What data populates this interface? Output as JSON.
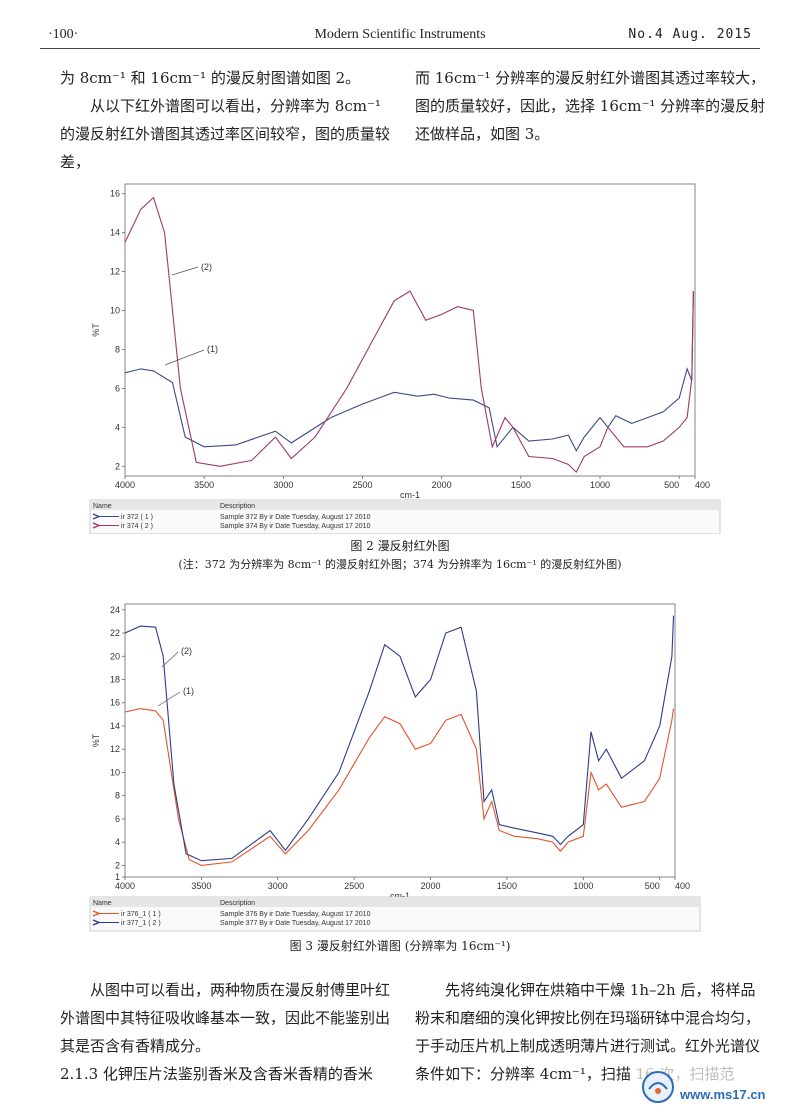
{
  "header": {
    "page_number": "·100·",
    "journal": "Modern Scientific Instruments",
    "issue": "No.4  Aug. 2015"
  },
  "top_text": {
    "left": [
      "为 8cm⁻¹ 和 16cm⁻¹ 的漫反射图谱如图 2。",
      "从以下红外谱图可以看出，分辨率为 8cm⁻¹ 的漫反射红外谱图其透过率区间较窄，图的质量较差，"
    ],
    "right": [
      "而 16cm⁻¹ 分辨率的漫反射红外谱图其透过率较大，图的质量较好，因此，选择 16cm⁻¹ 分辨率的漫反射还做样品，如图 3。"
    ]
  },
  "figure2": {
    "caption": "图 2   漫反射红外图",
    "note": "(注：372 为分辨率为 8cm⁻¹ 的漫反射红外图；374 为分辨率为 16cm⁻¹ 的漫反射红外图)",
    "legend_headers": [
      "Name",
      "Description"
    ],
    "legend_rows": [
      {
        "name": "ir 372  ( 1 )",
        "desc": "Sample 372 By ir Date Tuesday, August 17 2010",
        "color": "#3a4a8c"
      },
      {
        "name": "ir 374  ( 2 )",
        "desc": "Sample 374 By ir Date Tuesday, August 17 2010",
        "color": "#a0386a"
      }
    ]
  },
  "figure3": {
    "caption": "图 3   漫反射红外谱图 (分辨率为 16cm⁻¹)",
    "legend_headers": [
      "Name",
      "Description"
    ],
    "legend_rows": [
      {
        "name": "ir 376_1  ( 1 )",
        "desc": "Sample 376 By ir Date Tuesday, August 17 2010",
        "color": "#e0552a"
      },
      {
        "name": "ir 377_1  ( 2 )",
        "desc": "Sample 377 By ir Date Tuesday, August 17 2010",
        "color": "#2a3c8c"
      }
    ]
  },
  "bottom_text": {
    "left": [
      "从图中可以看出，两种物质在漫反射傅里叶红外谱图中其特征吸收峰基本一致，因此不能鉴别出其是否含有香精成分。",
      "2.1.3   化钾压片法鉴别香米及含香米香精的香米"
    ],
    "right": [
      "先将纯溴化钾在烘箱中干燥 1h–2h 后，将样品粉末和磨细的溴化钾按比例在玛瑙研钵中混合均匀，于手动压片机上制成透明薄片进行测试。红外光谱仪条件如下：分辨率 4cm⁻¹，扫描 16 次，扫描范"
    ]
  },
  "watermark": "www.ms17.cn",
  "chart_data": [
    {
      "type": "line",
      "title": "",
      "xlabel": "cm-1",
      "ylabel": "%T",
      "xlim": [
        4000,
        400
      ],
      "ylim": [
        1.5,
        16.5
      ],
      "x_ticks": [
        4000,
        3500,
        3000,
        2500,
        2000,
        1500,
        1000,
        500,
        400
      ],
      "y_ticks": [
        2,
        4,
        6,
        8,
        10,
        12,
        14,
        16
      ],
      "annotations": [
        "(1)",
        "(2)"
      ],
      "series": [
        {
          "name": "ir 372 (1)",
          "color": "#3a4a8c",
          "x": [
            4000,
            3900,
            3820,
            3700,
            3620,
            3500,
            3300,
            3050,
            2950,
            2700,
            2500,
            2300,
            2150,
            2050,
            1950,
            1800,
            1700,
            1650,
            1550,
            1450,
            1300,
            1200,
            1150,
            1100,
            1000,
            950,
            900,
            800,
            700,
            600,
            500,
            450,
            420,
            410
          ],
          "y": [
            6.8,
            7.0,
            6.9,
            6.3,
            3.5,
            3.0,
            3.1,
            3.8,
            3.2,
            4.5,
            5.2,
            5.8,
            5.6,
            5.7,
            5.5,
            5.4,
            5.0,
            3.0,
            4.0,
            3.3,
            3.4,
            3.6,
            2.8,
            3.5,
            4.5,
            4.0,
            4.6,
            4.2,
            4.5,
            4.8,
            5.5,
            7.0,
            6.4,
            11.0
          ]
        },
        {
          "name": "ir 374 (2)",
          "color": "#a0386a",
          "x": [
            4000,
            3900,
            3820,
            3750,
            3650,
            3550,
            3400,
            3200,
            3050,
            2950,
            2800,
            2600,
            2400,
            2300,
            2200,
            2100,
            2000,
            1900,
            1800,
            1750,
            1680,
            1600,
            1550,
            1450,
            1300,
            1200,
            1150,
            1100,
            1000,
            950,
            850,
            700,
            600,
            500,
            450,
            420,
            410
          ],
          "y": [
            13.5,
            15.2,
            15.8,
            14.0,
            6.0,
            2.2,
            2.0,
            2.3,
            3.5,
            2.4,
            3.5,
            6.0,
            9.0,
            10.5,
            11.0,
            9.5,
            9.8,
            10.2,
            10.0,
            6.0,
            3.0,
            4.5,
            4.0,
            2.5,
            2.4,
            2.1,
            1.7,
            2.5,
            3.0,
            4.0,
            3.0,
            3.0,
            3.3,
            4.0,
            4.5,
            6.5,
            11.0
          ]
        }
      ]
    },
    {
      "type": "line",
      "title": "",
      "xlabel": "cm-1",
      "ylabel": "%T",
      "xlim": [
        4000,
        400
      ],
      "ylim": [
        1,
        24.5
      ],
      "x_ticks": [
        4000,
        3500,
        3000,
        2500,
        2000,
        1500,
        1000,
        500,
        400
      ],
      "y_ticks": [
        1,
        2,
        4,
        6,
        8,
        10,
        12,
        14,
        16,
        18,
        20,
        22,
        24
      ],
      "annotations": [
        "(1)",
        "(2)"
      ],
      "series": [
        {
          "name": "ir 376_1 (1)",
          "color": "#e0552a",
          "x": [
            4000,
            3900,
            3800,
            3750,
            3650,
            3580,
            3500,
            3300,
            3050,
            2950,
            2800,
            2600,
            2400,
            2300,
            2200,
            2100,
            2000,
            1900,
            1800,
            1700,
            1650,
            1600,
            1550,
            1450,
            1300,
            1200,
            1150,
            1100,
            1000,
            950,
            900,
            850,
            750,
            600,
            500,
            420,
            410
          ],
          "y": [
            15.2,
            15.5,
            15.3,
            14.5,
            6.0,
            2.5,
            2.0,
            2.3,
            4.5,
            3.0,
            5.0,
            8.5,
            13.0,
            14.8,
            14.2,
            12.0,
            12.5,
            14.5,
            15.0,
            12.0,
            6.0,
            7.5,
            5.0,
            4.5,
            4.3,
            4.0,
            3.2,
            4.0,
            4.5,
            10.0,
            8.5,
            9.0,
            7.0,
            7.5,
            9.5,
            14.5,
            15.5
          ]
        },
        {
          "name": "ir 377_1 (2)",
          "color": "#2a3c8c",
          "x": [
            4000,
            3900,
            3800,
            3750,
            3680,
            3600,
            3500,
            3300,
            3050,
            2950,
            2800,
            2600,
            2400,
            2300,
            2200,
            2100,
            2000,
            1900,
            1800,
            1700,
            1650,
            1600,
            1550,
            1450,
            1300,
            1200,
            1150,
            1100,
            1000,
            950,
            900,
            850,
            750,
            600,
            500,
            420,
            410
          ],
          "y": [
            22.0,
            22.6,
            22.5,
            20.0,
            9.0,
            3.0,
            2.4,
            2.6,
            5.0,
            3.3,
            6.0,
            10.0,
            17.0,
            21.0,
            20.0,
            16.5,
            18.0,
            22.0,
            22.5,
            17.0,
            7.5,
            8.5,
            5.5,
            5.2,
            4.8,
            4.5,
            3.8,
            4.5,
            5.5,
            13.5,
            11.0,
            12.0,
            9.5,
            11.0,
            14.0,
            20.0,
            23.5
          ]
        }
      ]
    }
  ]
}
